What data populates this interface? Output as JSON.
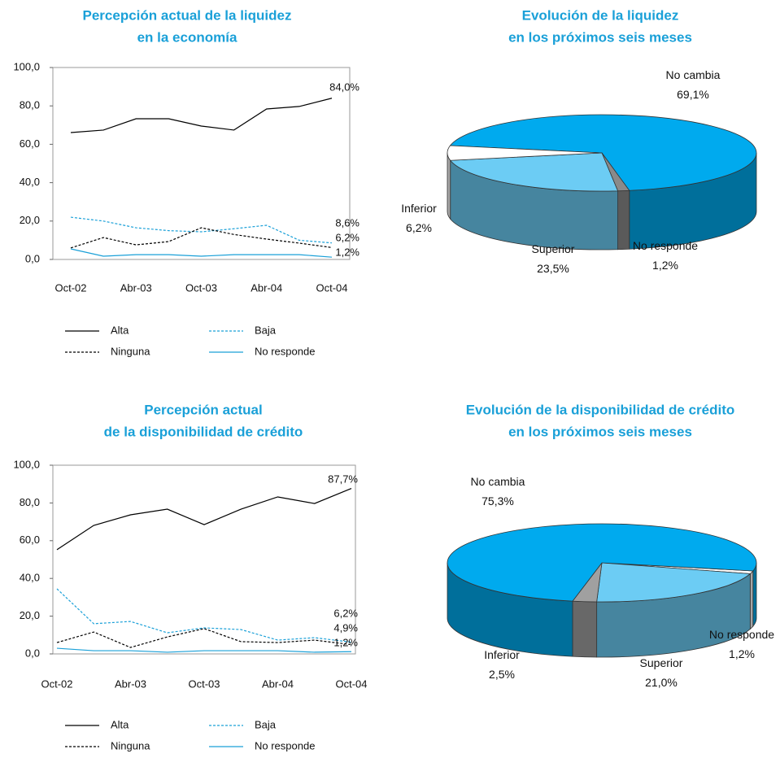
{
  "chart_data": [
    {
      "type": "line",
      "title": [
        "Percepción actual de la liquidez",
        "en la economía"
      ],
      "categories": [
        "Oct-02",
        null,
        "Abr-03",
        null,
        "Oct-03",
        null,
        "Abr-04",
        null,
        "Oct-04"
      ],
      "ylim": [
        0,
        100
      ],
      "yticks": [
        {
          "value": 0,
          "label": "0,0"
        },
        {
          "value": 20,
          "label": "20,0"
        },
        {
          "value": 40,
          "label": "40,0"
        },
        {
          "value": 60,
          "label": "60,0"
        },
        {
          "value": 80,
          "label": "80,0"
        },
        {
          "value": 100,
          "label": "100,0"
        }
      ],
      "series": [
        {
          "name": "Alta",
          "color": "#000000",
          "values": [
            66.1,
            67.4,
            73.3,
            73.3,
            69.5,
            67.4,
            78.4,
            79.7,
            84.0
          ],
          "value_labels": [
            null,
            null,
            null,
            null,
            null,
            null,
            null,
            null,
            "84,0%"
          ]
        },
        {
          "name": "Baja",
          "color": "#1aa0d8",
          "dash": true,
          "values": [
            22.0,
            20.0,
            16.5,
            15.0,
            14.4,
            16.0,
            17.8,
            10.0,
            8.6
          ],
          "value_labels": [
            null,
            null,
            null,
            null,
            null,
            null,
            null,
            null,
            "8,6%"
          ]
        },
        {
          "name": "Ninguna",
          "color": "#000000",
          "dash": true,
          "values": [
            6.0,
            11.4,
            7.6,
            9.3,
            16.5,
            13.0,
            10.6,
            8.5,
            6.2
          ],
          "value_labels": [
            null,
            null,
            null,
            null,
            null,
            null,
            null,
            null,
            "6,2%"
          ]
        },
        {
          "name": "No responde",
          "color": "#1aa0d8",
          "values": [
            5.5,
            1.7,
            2.5,
            2.5,
            1.7,
            2.5,
            2.5,
            2.5,
            1.2
          ],
          "value_labels": [
            null,
            null,
            null,
            null,
            null,
            null,
            null,
            null,
            "1,2%"
          ]
        }
      ]
    },
    {
      "type": "pie",
      "title": [
        "Evolución de la liquidez",
        "en los próximos seis meses"
      ],
      "categories": [
        "No cambia",
        "No responde",
        "Superior",
        "Inferior"
      ],
      "values": [
        69.1,
        1.2,
        23.5,
        6.2
      ],
      "value_labels": [
        "69,1%",
        "1,2%",
        "23,5%",
        "6,2%"
      ],
      "colors": [
        "#00aaee",
        "#8a8a8a",
        "#6cccf4",
        "#ffffff"
      ]
    },
    {
      "type": "line",
      "title": [
        "Percepción actual",
        "de la disponibilidad de crédito"
      ],
      "categories": [
        "Oct-02",
        null,
        "Abr-03",
        null,
        "Oct-03",
        null,
        "Abr-04",
        null,
        "Oct-04"
      ],
      "ylim": [
        0,
        100
      ],
      "yticks": [
        {
          "value": 0,
          "label": "0,0"
        },
        {
          "value": 20,
          "label": "20,0"
        },
        {
          "value": 40,
          "label": "40,0"
        },
        {
          "value": 60,
          "label": "60,0"
        },
        {
          "value": 80,
          "label": "80,0"
        },
        {
          "value": 100,
          "label": "100,0"
        }
      ],
      "series": [
        {
          "name": "Alta",
          "color": "#000000",
          "values": [
            55.2,
            68.1,
            73.7,
            76.7,
            68.5,
            76.7,
            83.2,
            79.7,
            87.7
          ],
          "value_labels": [
            null,
            null,
            null,
            null,
            null,
            null,
            null,
            null,
            "87,7%"
          ]
        },
        {
          "name": "Baja",
          "color": "#1aa0d8",
          "dash": true,
          "values": [
            34.5,
            16.0,
            17.2,
            11.2,
            13.8,
            12.9,
            7.3,
            8.6,
            6.2
          ],
          "value_labels": [
            null,
            null,
            null,
            null,
            null,
            null,
            null,
            null,
            "6,2%"
          ]
        },
        {
          "name": "Ninguna",
          "color": "#000000",
          "dash": true,
          "values": [
            6.0,
            11.6,
            3.4,
            9.0,
            13.4,
            6.5,
            6.0,
            7.3,
            4.9
          ],
          "value_labels": [
            null,
            null,
            null,
            null,
            null,
            null,
            null,
            null,
            "4,9%"
          ]
        },
        {
          "name": "No responde",
          "color": "#1aa0d8",
          "values": [
            3.0,
            1.7,
            1.7,
            0.9,
            1.7,
            1.7,
            1.7,
            0.9,
            1.2
          ],
          "value_labels": [
            null,
            null,
            null,
            null,
            null,
            null,
            null,
            null,
            "1,2%"
          ]
        }
      ]
    },
    {
      "type": "pie",
      "title": [
        "Evolución de la disponibilidad de crédito",
        "en los próximos seis meses"
      ],
      "categories": [
        "No responde",
        "Superior",
        "Inferior",
        "No cambia"
      ],
      "values": [
        1.2,
        21.0,
        2.5,
        75.3
      ],
      "value_labels": [
        "1,2%",
        "21,0%",
        "2,5%",
        "75,3%"
      ],
      "colors": [
        "#ffffff",
        "#6cccf4",
        "#a0a0a0",
        "#00aaee"
      ]
    }
  ]
}
